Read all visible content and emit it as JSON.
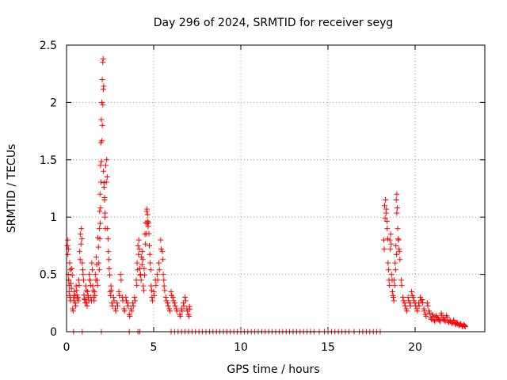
{
  "chart_data": {
    "type": "scatter",
    "title": "Day 296 of 2024, SRMTID for receiver seyg",
    "xlabel": "GPS time / hours",
    "ylabel": "SRMTID / TECUs",
    "xlim": [
      0,
      24
    ],
    "ylim": [
      0,
      2.5
    ],
    "x_ticks": [
      0,
      5,
      10,
      15,
      20
    ],
    "x_tick_labels": [
      "0",
      "5",
      "10",
      "15",
      "20"
    ],
    "y_ticks": [
      0,
      0.5,
      1,
      1.5,
      2,
      2.5
    ],
    "y_tick_labels": [
      "0",
      "0.5",
      "1",
      "1.5",
      "2",
      "2.5"
    ],
    "grid": true,
    "marker": "+",
    "series": [
      {
        "name": "SRMTID",
        "color": "#ff0000",
        "x": [
          0.05,
          0.08,
          0.1,
          0.12,
          0.15,
          0.18,
          0.2,
          0.25,
          0.3,
          0.35,
          0.4,
          0.45,
          0.5,
          0.55,
          0.6,
          0.65,
          0.7,
          0.75,
          0.8,
          0.85,
          0.9,
          0.95,
          1.0,
          1.05,
          1.1,
          1.15,
          1.2,
          1.25,
          1.3,
          1.35,
          1.4,
          1.45,
          1.5,
          1.55,
          1.6,
          1.65,
          1.7,
          1.75,
          1.8,
          1.85,
          1.88,
          1.9,
          1.92,
          1.95,
          1.97,
          2.0,
          2.02,
          2.05,
          2.08,
          2.1,
          2.12,
          2.15,
          2.18,
          2.2,
          2.25,
          2.3,
          2.35,
          2.4,
          2.45,
          2.5,
          2.55,
          2.6,
          2.7,
          2.8,
          2.9,
          3.0,
          3.1,
          3.2,
          3.3,
          3.4,
          3.5,
          3.6,
          3.7,
          3.8,
          3.9,
          4.0,
          4.05,
          4.1,
          4.15,
          4.2,
          4.25,
          4.3,
          4.35,
          4.4,
          4.45,
          4.5,
          4.55,
          4.6,
          4.62,
          4.65,
          4.7,
          4.75,
          4.8,
          4.85,
          4.9,
          5.0,
          5.1,
          5.2,
          5.3,
          5.4,
          5.5,
          5.55,
          5.6,
          5.7,
          5.8,
          5.9,
          6.0,
          6.1,
          6.2,
          6.3,
          6.5,
          6.6,
          6.7,
          6.8,
          6.9,
          7.0,
          7.05,
          18.2,
          18.25,
          18.3,
          18.35,
          18.4,
          18.45,
          18.5,
          18.55,
          18.6,
          18.65,
          18.7,
          18.75,
          18.8,
          18.85,
          18.9,
          18.92,
          18.95,
          19.0,
          19.05,
          19.1,
          19.2,
          19.3,
          19.4,
          19.5,
          19.6,
          19.7,
          19.8,
          19.9,
          20.0,
          20.1,
          20.2,
          20.3,
          20.4,
          20.5,
          20.6,
          20.7,
          20.8,
          20.9,
          21.0,
          21.1,
          21.2,
          21.3,
          21.4,
          21.5,
          21.6,
          21.7,
          21.8,
          21.9,
          22.0,
          22.1,
          22.2,
          22.3,
          22.4,
          22.5,
          22.6,
          22.7,
          22.8,
          22.85
        ],
        "y": [
          0.75,
          0.8,
          0.5,
          0.45,
          0.35,
          0.6,
          0.3,
          0.42,
          0.55,
          0.2,
          0.3,
          0.35,
          0.25,
          0.4,
          0.32,
          0.3,
          0.45,
          0.7,
          0.85,
          0.9,
          0.6,
          0.5,
          0.32,
          0.28,
          0.4,
          0.25,
          0.35,
          0.3,
          0.5,
          0.45,
          0.3,
          0.6,
          0.4,
          0.3,
          0.35,
          0.5,
          0.65,
          0.45,
          0.82,
          0.6,
          0.9,
          1.05,
          1.2,
          1.45,
          1.65,
          1.85,
          2.0,
          2.2,
          2.35,
          2.38,
          1.4,
          1.3,
          1.15,
          1.0,
          1.45,
          1.5,
          0.9,
          0.7,
          0.55,
          0.35,
          0.4,
          0.25,
          0.3,
          0.2,
          0.25,
          0.35,
          0.5,
          0.3,
          0.2,
          0.3,
          0.25,
          0.15,
          0.2,
          0.25,
          0.3,
          0.45,
          0.6,
          0.75,
          0.8,
          0.55,
          0.5,
          0.65,
          0.7,
          0.4,
          0.55,
          0.85,
          0.95,
          1.05,
          1.07,
          1.02,
          0.95,
          0.75,
          0.6,
          0.4,
          0.3,
          0.35,
          0.45,
          0.5,
          0.6,
          0.8,
          0.7,
          0.5,
          0.4,
          0.3,
          0.25,
          0.2,
          0.35,
          0.3,
          0.25,
          0.2,
          0.15,
          0.2,
          0.25,
          0.3,
          0.2,
          0.15,
          0.22,
          0.8,
          1.1,
          1.15,
          1.07,
          0.9,
          0.6,
          0.45,
          0.8,
          0.85,
          0.5,
          0.35,
          0.3,
          0.45,
          0.6,
          0.75,
          1.15,
          1.2,
          0.9,
          0.8,
          0.7,
          0.45,
          0.3,
          0.25,
          0.2,
          0.3,
          0.25,
          0.35,
          0.3,
          0.25,
          0.2,
          0.25,
          0.3,
          0.28,
          0.2,
          0.15,
          0.25,
          0.18,
          0.12,
          0.15,
          0.1,
          0.14,
          0.12,
          0.1,
          0.16,
          0.12,
          0.1,
          0.14,
          0.09,
          0.1,
          0.08,
          0.1,
          0.07,
          0.08,
          0.06,
          0.07,
          0.05,
          0.06,
          0.05
        ],
        "zero_x": [
          0.4,
          0.9,
          2.0,
          3.6,
          4.1,
          4.2,
          6.0,
          6.2,
          6.4,
          6.6,
          6.8,
          7.0,
          7.2,
          7.4,
          7.6,
          7.8,
          8.0,
          8.2,
          8.4,
          8.6,
          8.8,
          9.0,
          9.2,
          9.4,
          9.6,
          9.8,
          10.0,
          10.2,
          10.4,
          10.6,
          10.8,
          11.0,
          11.2,
          11.4,
          11.6,
          11.8,
          12.0,
          12.2,
          12.4,
          12.6,
          12.8,
          13.0,
          13.2,
          13.4,
          13.6,
          13.8,
          14.0,
          14.2,
          14.5,
          14.8,
          15.0,
          15.2,
          15.4,
          15.6,
          15.8,
          16.0,
          16.2,
          16.5,
          16.8,
          17.0,
          17.2,
          17.4,
          17.6,
          17.8,
          18.0
        ]
      }
    ]
  }
}
